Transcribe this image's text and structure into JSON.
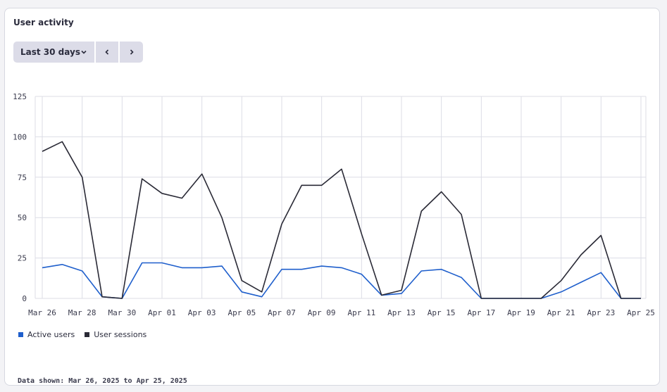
{
  "header": {
    "title": "User activity"
  },
  "toolbar": {
    "range_label": "Last 30 days",
    "range_icon": "chevron-down-icon",
    "prev_icon": "chevron-left-icon",
    "next_icon": "chevron-right-icon"
  },
  "colors": {
    "active_users": "#1f5fcc",
    "user_sessions": "#2a2a36",
    "grid": "#dcdde6",
    "axis_text": "#3a3b4d"
  },
  "chart_data": {
    "type": "line",
    "x": [
      "Mar 26",
      "Mar 27",
      "Mar 28",
      "Mar 29",
      "Mar 30",
      "Mar 31",
      "Apr 01",
      "Apr 02",
      "Apr 03",
      "Apr 04",
      "Apr 05",
      "Apr 06",
      "Apr 07",
      "Apr 08",
      "Apr 09",
      "Apr 10",
      "Apr 11",
      "Apr 12",
      "Apr 13",
      "Apr 14",
      "Apr 15",
      "Apr 16",
      "Apr 17",
      "Apr 18",
      "Apr 19",
      "Apr 20",
      "Apr 21",
      "Apr 22",
      "Apr 23",
      "Apr 24",
      "Apr 25"
    ],
    "x_tick_labels": [
      "Mar 26",
      "Mar 28",
      "Mar 30",
      "Apr 01",
      "Apr 03",
      "Apr 05",
      "Apr 07",
      "Apr 09",
      "Apr 11",
      "Apr 13",
      "Apr 15",
      "Apr 17",
      "Apr 19",
      "Apr 21",
      "Apr 23",
      "Apr 25"
    ],
    "y_ticks": [
      0,
      25,
      50,
      75,
      100,
      125
    ],
    "ylim": [
      0,
      125
    ],
    "grid": true,
    "legend_position": "bottom-left",
    "series": [
      {
        "name": "Active users",
        "values": [
          19,
          21,
          17,
          1,
          0,
          22,
          22,
          19,
          19,
          20,
          4,
          1,
          18,
          18,
          20,
          19,
          15,
          2,
          3,
          17,
          18,
          13,
          0,
          0,
          0,
          0,
          4,
          10,
          16,
          0,
          0
        ]
      },
      {
        "name": "User sessions",
        "values": [
          91,
          97,
          75,
          1,
          0,
          74,
          65,
          62,
          77,
          50,
          11,
          4,
          46,
          70,
          70,
          80,
          40,
          2,
          5,
          54,
          66,
          52,
          0,
          0,
          0,
          0,
          11,
          27,
          39,
          0,
          0
        ]
      }
    ]
  },
  "footer": {
    "text": "Data shown: Mar 26, 2025 to Apr 25, 2025"
  }
}
